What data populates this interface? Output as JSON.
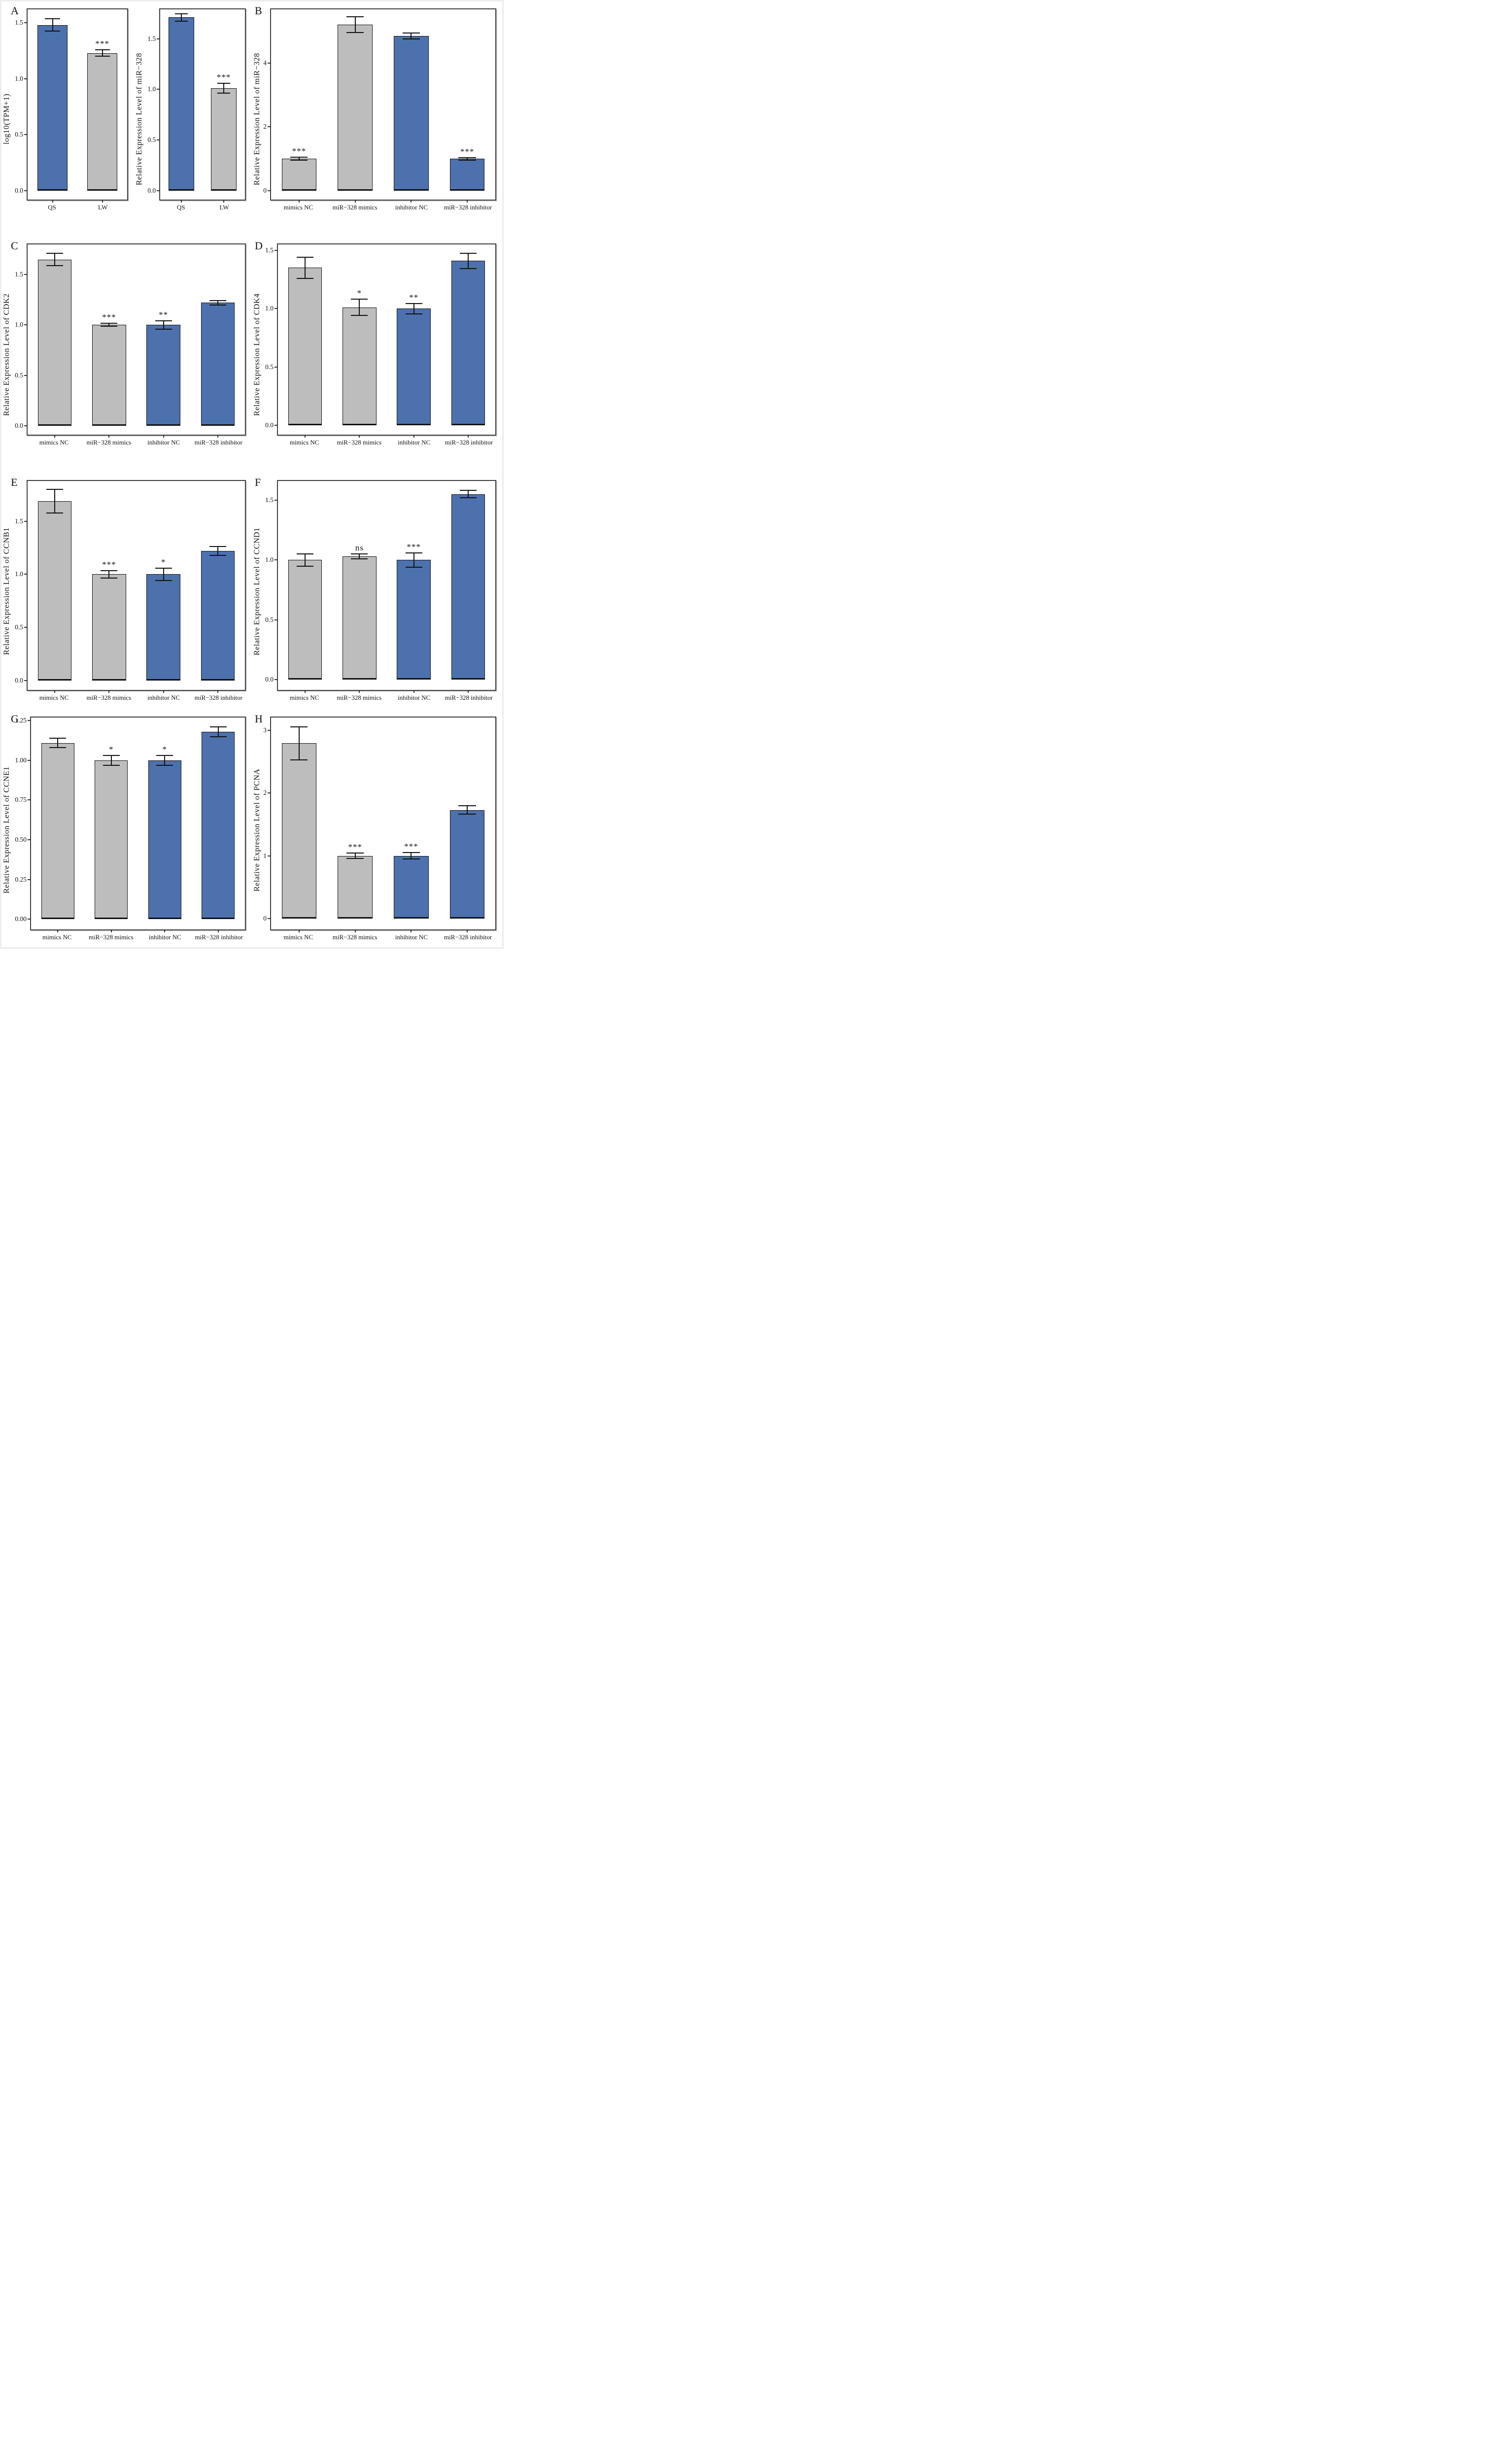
{
  "figure": {
    "background": "#ffffff",
    "border_color": "#ededed"
  },
  "colors": {
    "blue": "#4d71ad",
    "gray": "#bdbdbd",
    "bar_outline": "#111111",
    "axis": "#3f3f3f",
    "error_bar": "#111111",
    "text": "#111111"
  },
  "chart_data": [
    {
      "id": "A1",
      "panel_label": "A",
      "type": "bar",
      "ylabel": "log10(TPM+1)",
      "categories": [
        "QS",
        "LW"
      ],
      "values": [
        1.48,
        1.23
      ],
      "errors": [
        0.055,
        0.03
      ],
      "sig": [
        "",
        "***"
      ],
      "bar_colors": [
        "blue",
        "gray"
      ],
      "yticks": [
        0,
        0.5,
        1,
        1.5
      ],
      "ytick_labels": [
        "0.0",
        "0.5",
        "1.0",
        "1.5"
      ],
      "ylim": [
        -0.08,
        1.62
      ],
      "grid": "off",
      "legend": "none"
    },
    {
      "id": "A2",
      "panel_label": "",
      "type": "bar",
      "ylabel": "Relative Expression Level of miR−328",
      "categories": [
        "QS",
        "LW"
      ],
      "values": [
        1.71,
        1.01
      ],
      "errors": [
        0.035,
        0.05
      ],
      "sig": [
        "",
        "***"
      ],
      "bar_colors": [
        "blue",
        "gray"
      ],
      "yticks": [
        0,
        0.5,
        1,
        1.5
      ],
      "ytick_labels": [
        "0.0",
        "0.5",
        "1.0",
        "1.5"
      ],
      "ylim": [
        -0.09,
        1.79
      ],
      "grid": "off",
      "legend": "none"
    },
    {
      "id": "B",
      "panel_label": "B",
      "type": "bar",
      "ylabel": "Relative Expression Level of miR−328",
      "categories": [
        "mimics NC",
        "miR−328 mimics",
        "inhibitor NC",
        "miR−328 inhibitor"
      ],
      "values": [
        1.0,
        5.2,
        4.85,
        1.0
      ],
      "errors": [
        0.05,
        0.25,
        0.09,
        0.04
      ],
      "sig": [
        "***",
        "",
        "",
        "***"
      ],
      "bar_colors": [
        "gray",
        "gray",
        "blue",
        "blue"
      ],
      "yticks": [
        0,
        2,
        4
      ],
      "ytick_labels": [
        "0",
        "2",
        "4"
      ],
      "ylim": [
        -0.28,
        5.68
      ],
      "grid": "off",
      "legend": "none"
    },
    {
      "id": "C",
      "panel_label": "C",
      "type": "bar",
      "ylabel": "Relative Expression Level of CDK2",
      "categories": [
        "mimics NC",
        "miR−328 mimics",
        "inhibitor NC",
        "miR−328 inhibitor"
      ],
      "values": [
        1.65,
        1.0,
        1.0,
        1.22
      ],
      "errors": [
        0.06,
        0.015,
        0.04,
        0.02
      ],
      "sig": [
        "",
        "***",
        "**",
        ""
      ],
      "bar_colors": [
        "gray",
        "gray",
        "blue",
        "blue"
      ],
      "yticks": [
        0,
        0.5,
        1,
        1.5
      ],
      "ytick_labels": [
        "0.0",
        "0.5",
        "1.0",
        "1.5"
      ],
      "ylim": [
        -0.09,
        1.8
      ],
      "grid": "off",
      "legend": "none"
    },
    {
      "id": "D",
      "panel_label": "D",
      "type": "bar",
      "ylabel": "Relative Expression Level of CDK4",
      "categories": [
        "mimics NC",
        "miR−328 mimics",
        "inhibitor NC",
        "miR−328 inhibitor"
      ],
      "values": [
        1.35,
        1.01,
        1.0,
        1.41
      ],
      "errors": [
        0.09,
        0.07,
        0.045,
        0.065
      ],
      "sig": [
        "",
        "*",
        "**",
        ""
      ],
      "bar_colors": [
        "gray",
        "gray",
        "blue",
        "blue"
      ],
      "yticks": [
        0,
        0.5,
        1,
        1.5
      ],
      "ytick_labels": [
        "0.0",
        "0.5",
        "1.0",
        "1.5"
      ],
      "ylim": [
        -0.08,
        1.55
      ],
      "grid": "off",
      "legend": "none"
    },
    {
      "id": "E",
      "panel_label": "E",
      "type": "bar",
      "ylabel": "Relative Expression Level of CCNB1",
      "categories": [
        "mimics NC",
        "miR−328 mimics",
        "inhibitor NC",
        "miR−328 inhibitor"
      ],
      "values": [
        1.69,
        1.0,
        1.0,
        1.22
      ],
      "errors": [
        0.11,
        0.035,
        0.06,
        0.04
      ],
      "sig": [
        "",
        "***",
        "*",
        ""
      ],
      "bar_colors": [
        "gray",
        "gray",
        "blue",
        "blue"
      ],
      "yticks": [
        0,
        0.5,
        1,
        1.5
      ],
      "ytick_labels": [
        "0.0",
        "0.5",
        "1.0",
        "1.5"
      ],
      "ylim": [
        -0.09,
        1.88
      ],
      "grid": "off",
      "legend": "none"
    },
    {
      "id": "F",
      "panel_label": "F",
      "type": "bar",
      "ylabel": "Relative Expression Level of CCND1",
      "categories": [
        "mimics NC",
        "miR−328 mimics",
        "inhibitor NC",
        "miR−328 inhibitor"
      ],
      "values": [
        1.0,
        1.03,
        1.0,
        1.55
      ],
      "errors": [
        0.05,
        0.02,
        0.06,
        0.03
      ],
      "sig": [
        "",
        "ns",
        "***",
        ""
      ],
      "bar_colors": [
        "gray",
        "gray",
        "blue",
        "blue"
      ],
      "yticks": [
        0,
        0.5,
        1,
        1.5
      ],
      "ytick_labels": [
        "0.0",
        "0.5",
        "1.0",
        "1.5"
      ],
      "ylim": [
        -0.085,
        1.66
      ],
      "grid": "off",
      "legend": "none"
    },
    {
      "id": "G",
      "panel_label": "G",
      "type": "bar",
      "ylabel": "Relative Expression Level of CCNE1",
      "categories": [
        "mimics NC",
        "miR−328 mimics",
        "inhibitor NC",
        "miR−328 inhibitor"
      ],
      "values": [
        1.11,
        1.0,
        1.0,
        1.18
      ],
      "errors": [
        0.03,
        0.03,
        0.03,
        0.03
      ],
      "sig": [
        "",
        "*",
        "*",
        ""
      ],
      "bar_colors": [
        "gray",
        "gray",
        "blue",
        "blue"
      ],
      "yticks": [
        0,
        0.25,
        0.5,
        0.75,
        1,
        1.25
      ],
      "ytick_labels": [
        "0.00",
        "0.25",
        "0.50",
        "0.75",
        "1.00",
        "1.25"
      ],
      "ylim": [
        -0.065,
        1.27
      ],
      "grid": "off",
      "legend": "none"
    },
    {
      "id": "H",
      "panel_label": "H",
      "type": "bar",
      "ylabel": "Relative Expression Level of PCNA",
      "categories": [
        "mimics NC",
        "miR−328 mimics",
        "inhibitor NC",
        "miR−328 inhibitor"
      ],
      "values": [
        2.79,
        1.0,
        1.0,
        1.73
      ],
      "errors": [
        0.26,
        0.045,
        0.05,
        0.065
      ],
      "sig": [
        "",
        "***",
        "***",
        ""
      ],
      "bar_colors": [
        "gray",
        "gray",
        "blue",
        "blue"
      ],
      "yticks": [
        0,
        1,
        2,
        3
      ],
      "ytick_labels": [
        "0",
        "1",
        "2",
        "3"
      ],
      "ylim": [
        -0.17,
        3.2
      ],
      "grid": "off",
      "legend": "none"
    }
  ]
}
